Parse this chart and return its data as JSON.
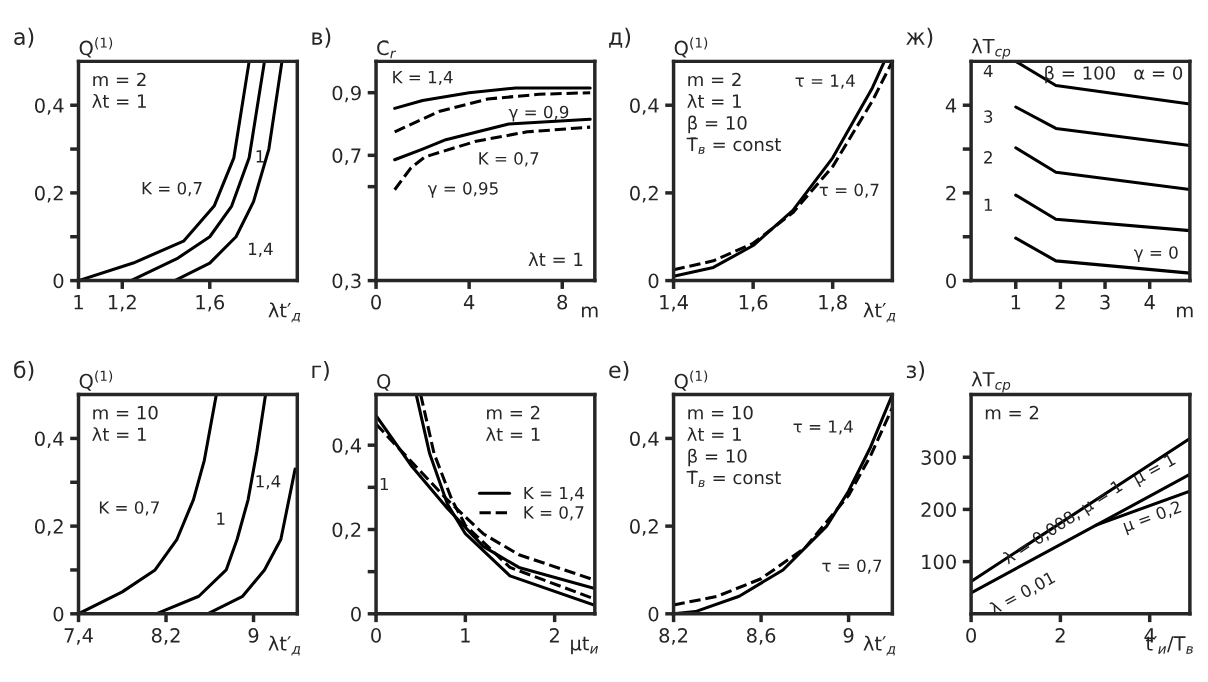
{
  "chart_data": [
    {
      "type": "line",
      "title": "а)",
      "ylabel": "Q$^{(1)}$",
      "xlabel": "λt′$_{д}$",
      "xlim": [
        1,
        2
      ],
      "ylim": [
        0,
        0.5
      ],
      "xticks": [
        1,
        {
          "value": 1.2,
          "label": "1,2"
        },
        {
          "value": 1.6,
          "label": "1,6"
        }
      ],
      "yticks": [
        0,
        {
          "value": 0.1,
          "label": null
        },
        {
          "value": 0.2,
          "label": "0,2"
        },
        {
          "value": 0.3,
          "label": null
        },
        {
          "value": 0.4,
          "label": "0,4"
        }
      ],
      "series": [
        {
          "color": "#000000",
          "line_style": "solid",
          "x": [
            1.0,
            1.25,
            1.48,
            1.62,
            1.71,
            1.78
          ],
          "values": [
            0,
            0.04,
            0.09,
            0.17,
            0.28,
            0.5
          ]
        },
        {
          "color": "#000000",
          "line_style": "solid",
          "x": [
            1.24,
            1.45,
            1.6,
            1.7,
            1.78,
            1.85
          ],
          "values": [
            0,
            0.05,
            0.1,
            0.17,
            0.28,
            0.5
          ]
        },
        {
          "color": "#000000",
          "line_style": "solid",
          "x": [
            1.44,
            1.6,
            1.72,
            1.8,
            1.87,
            1.93
          ],
          "values": [
            0,
            0.04,
            0.1,
            0.18,
            0.3,
            0.5
          ]
        }
      ],
      "annotations": [
        "m = 2",
        "λt = 1",
        {
          "text": "K = 0,7",
          "x": 1.62,
          "y": 0.17
        },
        {
          "text": "1",
          "x": 1.78,
          "y": 0.28
        },
        {
          "text": "1,4",
          "x": 1.72,
          "y": 0.1
        }
      ]
    },
    {
      "type": "line",
      "title": "в)",
      "ylabel": "C̄$_{r}$",
      "xlabel": "m",
      "xlim": [
        0,
        9.4
      ],
      "ylim": [
        0.3,
        1.0
      ],
      "xticks": [
        0,
        4,
        8
      ],
      "yticks": [
        {
          "value": 0.3,
          "label": "0,3"
        },
        {
          "value": 0.6,
          "label": null
        },
        {
          "value": 0.7,
          "label": "0,7"
        },
        {
          "value": 0.9,
          "label": "0,9"
        }
      ],
      "series": [
        {
          "color": "#000000",
          "line_style": "solid",
          "x": [
            0.8,
            2,
            4,
            6,
            9.2
          ],
          "values": [
            0.85,
            0.875,
            0.9,
            0.915,
            0.915
          ]
        },
        {
          "color": "#000000",
          "line_style": "dashed",
          "x": [
            0.8,
            2.7,
            4.8,
            7,
            9.2
          ],
          "values": [
            0.775,
            0.84,
            0.88,
            0.895,
            0.9
          ]
        },
        {
          "color": "#000000",
          "line_style": "solid",
          "x": [
            0.8,
            2,
            3,
            5.7,
            9.2
          ],
          "values": [
            0.686,
            0.72,
            0.75,
            0.8,
            0.815
          ]
        },
        {
          "color": "#000000",
          "line_style": "dashed",
          "x": [
            0.8,
            1.5,
            2.1,
            4.3,
            6.5,
            9.2
          ],
          "values": [
            0.59,
            0.66,
            0.695,
            0.745,
            0.775,
            0.79
          ]
        }
      ],
      "annotations": [
        "λt = 1",
        {
          "text": "K = 1,4",
          "x": 2,
          "y": 0.875
        },
        {
          "text": "γ = 0,9",
          "x": 7,
          "y": 0.895
        },
        {
          "text": "γ = 0,95",
          "x": 1.5,
          "y": 0.66
        },
        {
          "text": "K = 0,7",
          "x": 5.7,
          "y": 0.8
        }
      ]
    },
    {
      "type": "line",
      "title": "д)",
      "ylabel": "Q$^{(1)}$",
      "xlabel": "λt′$_{д}$",
      "xlim": [
        1.4,
        1.95
      ],
      "ylim": [
        0,
        0.5
      ],
      "xticks": [
        {
          "value": 1.4,
          "label": "1,4"
        },
        {
          "value": 1.6,
          "label": "1,6"
        },
        {
          "value": 1.8,
          "label": "1,8"
        }
      ],
      "yticks": [
        0,
        {
          "value": 0.2,
          "label": "0,2"
        },
        {
          "value": 0.4,
          "label": "0,4"
        }
      ],
      "series": [
        {
          "color": "#000000",
          "line_style": "solid",
          "x": [
            1.4,
            1.5,
            1.6,
            1.7,
            1.8,
            1.9,
            1.93
          ],
          "values": [
            0.01,
            0.03,
            0.08,
            0.16,
            0.28,
            0.44,
            0.5
          ]
        },
        {
          "color": "#000000",
          "line_style": "dashed",
          "x": [
            1.4,
            1.5,
            1.6,
            1.7,
            1.8,
            1.9,
            1.95
          ],
          "values": [
            0.025,
            0.045,
            0.085,
            0.155,
            0.26,
            0.41,
            0.5
          ]
        }
      ],
      "annotations": [
        "m = 2",
        "λt = 1",
        "β = 10",
        "T̄$_{в}$ = const",
        {
          "text": "τ = 1,4",
          "x": 1.9,
          "y": 0.44
        },
        {
          "text": "τ = 0,7",
          "x": 1.8,
          "y": 0.26
        }
      ]
    },
    {
      "type": "line",
      "title": "ж)",
      "ylabel": "λT$_{ср}$",
      "xlabel": "m",
      "xlim": [
        0,
        4.9
      ],
      "ylim": [
        0,
        5
      ],
      "xticks": [
        1,
        2,
        3,
        4
      ],
      "yticks": [
        0,
        {
          "value": 1,
          "label": null
        },
        2,
        {
          "value": 3,
          "label": null
        },
        4
      ],
      "series": [
        {
          "color": "#000000",
          "line_style": "solid",
          "x": [
            1,
            1.9,
            4.9
          ],
          "values": [
            0.97,
            0.45,
            0.17
          ]
        },
        {
          "color": "#000000",
          "line_style": "solid",
          "x": [
            1,
            1.9,
            4.9
          ],
          "values": [
            1.95,
            1.4,
            1.14
          ]
        },
        {
          "color": "#000000",
          "line_style": "solid",
          "x": [
            1,
            1.9,
            4.9
          ],
          "values": [
            3.03,
            2.47,
            2.08
          ]
        },
        {
          "color": "#000000",
          "line_style": "solid",
          "x": [
            1,
            1.9,
            4.9
          ],
          "values": [
            3.96,
            3.47,
            3.08
          ]
        },
        {
          "color": "#000000",
          "line_style": "solid",
          "x": [
            1,
            1.9,
            4.9
          ],
          "values": [
            5,
            4.45,
            4.03
          ]
        }
      ],
      "annotations": [
        "β = 100",
        "α = 0",
        {
          "text": "4",
          "x": 1,
          "y": 5
        },
        {
          "text": "3",
          "x": 1,
          "y": 3.96
        },
        {
          "text": "2",
          "x": 1,
          "y": 3.03
        },
        {
          "text": "1",
          "x": 1,
          "y": 1.95
        },
        {
          "text": "γ = 0",
          "x": 4.9,
          "y": 0.17
        }
      ]
    },
    {
      "type": "line",
      "title": "б)",
      "ylabel": "Q$^{(1)}$",
      "xlabel": "λt′$_{д}$",
      "xlim": [
        7.4,
        9.4
      ],
      "ylim": [
        0,
        0.5
      ],
      "xticks": [
        {
          "value": 7.4,
          "label": "7,4"
        },
        {
          "value": 8.2,
          "label": "8,2"
        },
        9
      ],
      "yticks": [
        0,
        {
          "value": 0.1,
          "label": null
        },
        {
          "value": 0.2,
          "label": "0,2"
        },
        {
          "value": 0.3,
          "label": null
        },
        {
          "value": 0.4,
          "label": "0,4"
        }
      ],
      "series": [
        {
          "color": "#000000",
          "line_style": "solid",
          "x": [
            7.4,
            7.8,
            8.1,
            8.3,
            8.45,
            8.55,
            8.66
          ],
          "values": [
            0,
            0.05,
            0.1,
            0.17,
            0.26,
            0.35,
            0.5
          ]
        },
        {
          "color": "#000000",
          "line_style": "solid",
          "x": [
            8.11,
            8.5,
            8.75,
            8.85,
            8.95,
            9.03,
            9.11
          ],
          "values": [
            0,
            0.04,
            0.1,
            0.17,
            0.26,
            0.37,
            0.5
          ]
        },
        {
          "color": "#000000",
          "line_style": "solid",
          "x": [
            8.58,
            8.9,
            9.1,
            9.25,
            9.38
          ],
          "values": [
            0,
            0.04,
            0.1,
            0.17,
            0.33
          ]
        }
      ],
      "annotations": [
        "m = 10",
        "λt = 1",
        {
          "text": "K = 0,7",
          "x": 8.3,
          "y": 0.17
        },
        {
          "text": "1",
          "x": 8.85,
          "y": 0.17
        },
        {
          "text": "1,4",
          "x": 9.38,
          "y": 0.33
        }
      ]
    },
    {
      "type": "line",
      "title": "г)",
      "ylabel": "Q",
      "xlabel": "μt$_{и}$",
      "xlim": [
        0,
        2.45
      ],
      "ylim": [
        0,
        0.52
      ],
      "legend": "right",
      "xticks": [
        0,
        1,
        2
      ],
      "yticks": [
        0,
        {
          "value": 0.1,
          "label": null
        },
        {
          "value": 0.2,
          "label": "0,2"
        },
        {
          "value": 0.3,
          "label": null
        },
        {
          "value": 0.4,
          "label": "0,4"
        }
      ],
      "series": [
        {
          "name": "K = 1,4",
          "color": "#000000",
          "line_style": "solid",
          "x": [
            0,
            0.4,
            0.8,
            1.2,
            1.6,
            2.45
          ],
          "values": [
            0.47,
            0.35,
            0.25,
            0.16,
            0.11,
            0.06
          ]
        },
        {
          "name": "K = 0,7",
          "color": "#000000",
          "line_style": "dashed",
          "x": [
            0,
            0.4,
            0.8,
            1.2,
            1.6,
            2.45
          ],
          "values": [
            0.45,
            0.36,
            0.27,
            0.19,
            0.14,
            0.08
          ]
        },
        {
          "color": "#000000",
          "line_style": "solid",
          "x": [
            0.45,
            0.6,
            0.8,
            1.0,
            1.5,
            2.45
          ],
          "values": [
            0.52,
            0.38,
            0.26,
            0.19,
            0.09,
            0.02
          ]
        },
        {
          "color": "#000000",
          "line_style": "dashed",
          "x": [
            0.5,
            0.65,
            0.85,
            1.0,
            1.5,
            2.45
          ],
          "values": [
            0.52,
            0.38,
            0.27,
            0.21,
            0.11,
            0.035
          ]
        }
      ],
      "annotations": [
        "m = 2",
        "λt = 1",
        {
          "text": "1",
          "x": 0.4,
          "y": 0.35
        }
      ]
    },
    {
      "type": "line",
      "title": "е)",
      "ylabel": "Q$^{(1)}$",
      "xlabel": "λt′$_{д}$",
      "xlim": [
        8.2,
        9.2
      ],
      "ylim": [
        0,
        0.5
      ],
      "xticks": [
        {
          "value": 8.2,
          "label": "8,2"
        },
        {
          "value": 8.6,
          "label": "8,6"
        },
        9
      ],
      "yticks": [
        0,
        {
          "value": 0.2,
          "label": "0,2"
        },
        {
          "value": 0.4,
          "label": "0,4"
        }
      ],
      "series": [
        {
          "color": "#000000",
          "line_style": "solid",
          "x": [
            8.2,
            8.3,
            8.5,
            8.7,
            8.9,
            9.0,
            9.1,
            9.2
          ],
          "values": [
            0,
            0.005,
            0.04,
            0.1,
            0.2,
            0.28,
            0.38,
            0.5
          ]
        },
        {
          "color": "#000000",
          "line_style": "dashed",
          "x": [
            8.2,
            8.4,
            8.6,
            8.8,
            9.0,
            9.1,
            9.2
          ],
          "values": [
            0.02,
            0.04,
            0.08,
            0.15,
            0.27,
            0.36,
            0.47
          ]
        }
      ],
      "annotations": [
        "m = 10",
        "λt = 1",
        "β = 10",
        "T̄$_{в}$ = const",
        {
          "text": "τ = 1,4",
          "x": 9.1,
          "y": 0.38
        },
        {
          "text": "τ = 0,7",
          "x": 8.8,
          "y": 0.15
        }
      ]
    },
    {
      "type": "line",
      "title": "з)",
      "ylabel": "λT$_{ср}$",
      "xlabel": "t′$_{и}$/T$_{в}$",
      "xlim": [
        0,
        4.9
      ],
      "ylim": [
        0,
        420
      ],
      "xticks": [
        0,
        2,
        4
      ],
      "yticks": [
        100,
        200,
        300
      ],
      "series": [
        {
          "color": "#000000",
          "line_style": "solid",
          "x": [
            0,
            4.9
          ],
          "values": [
            62,
            336
          ]
        },
        {
          "color": "#000000",
          "line_style": "solid",
          "x": [
            0,
            4.9
          ],
          "values": [
            40,
            267
          ]
        },
        {
          "color": "#000000",
          "line_style": "solid",
          "x": [
            2.8,
            4.9
          ],
          "values": [
            170,
            235
          ]
        }
      ],
      "annotations": [
        "m = 2",
        {
          "text": "λ = 0,008, μ = 1",
          "x": 0,
          "y": 62
        },
        {
          "text": "λ = 0,01",
          "x": 0,
          "y": 40
        },
        {
          "text": "μ = 1",
          "x": 4.9,
          "y": 267
        },
        {
          "text": "μ = 0,2",
          "x": 4.9,
          "y": 235
        }
      ]
    }
  ]
}
